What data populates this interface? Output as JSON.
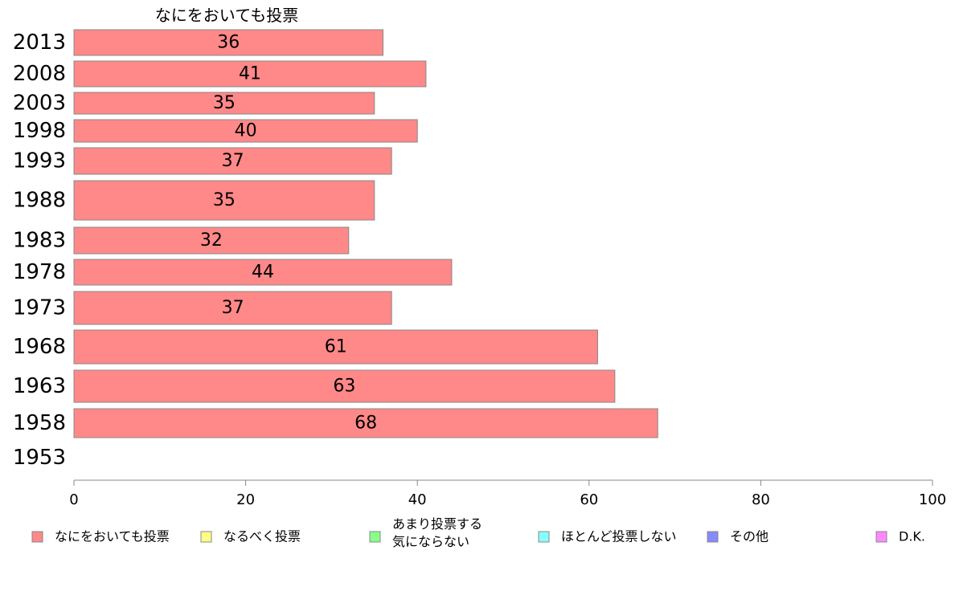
{
  "chart_data": {
    "type": "bar",
    "orientation": "horizontal",
    "stacked": true,
    "title": "",
    "series_header": "なにをおいても投票",
    "categories": [
      "2013",
      "2008",
      "2003",
      "1998",
      "1993",
      "1988",
      "1983",
      "1978",
      "1973",
      "1968",
      "1963",
      "1958",
      "1953"
    ],
    "series": [
      {
        "name": "なにをおいても投票",
        "color": "#ff8888",
        "values": [
          36,
          41,
          35,
          40,
          37,
          35,
          32,
          44,
          37,
          61,
          63,
          68,
          null
        ]
      }
    ],
    "legend": [
      {
        "label": "なにをおいても投票",
        "color": "#ff8888"
      },
      {
        "label": "なるべく投票",
        "color": "#ffff88"
      },
      {
        "label": "あまり投票する気にならない",
        "lines": [
          "あまり投票する",
          "気にならない"
        ],
        "color": "#88ff88"
      },
      {
        "label": "ほとんど投票しない",
        "color": "#88ffff"
      },
      {
        "label": "その他",
        "color": "#8888ff"
      },
      {
        "label": "D.K.",
        "color": "#ff88ff"
      }
    ],
    "xlim": [
      0,
      100
    ],
    "xticks": [
      0,
      20,
      40,
      60,
      80,
      100
    ],
    "grid": false,
    "legend_position": "bottom"
  }
}
